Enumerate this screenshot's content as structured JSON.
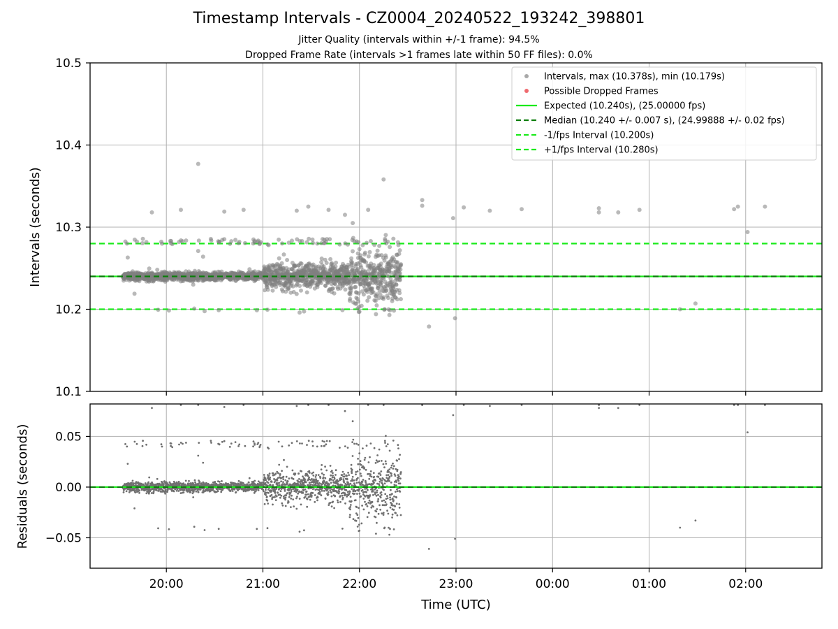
{
  "page": {
    "title": "Timestamp Intervals - CZ0004_20240522_193242_398801",
    "subtitle_1": "Jitter Quality (intervals within +/-1 frame): 94.5%",
    "subtitle_2": "Dropped Frame Rate (intervals >1 frames late within 50 FF files): 0.0%"
  },
  "colors": {
    "points": "#808080",
    "dropped": "#e8434a",
    "expected": "#1aea1a",
    "median": "#0a7d0a",
    "interval_bounds": "#1aea1a",
    "grid": "#b0b0b0"
  },
  "chart_data": [
    {
      "type": "scatter",
      "ylabel": "Intervals (seconds)",
      "ylim": [
        10.1,
        10.5
      ],
      "yticks": [
        10.1,
        10.2,
        10.3,
        10.4,
        10.5
      ],
      "ytick_labels": [
        "10.1",
        "10.2",
        "10.3",
        "10.4",
        "10.5"
      ],
      "xlim": [
        -0.79,
        6.79
      ],
      "grid": true,
      "legend_position": "top-right",
      "legend": [
        "Intervals, max (10.378s), min (10.179s)",
        "Possible Dropped Frames",
        "Expected (10.240s), (25.00000 fps)",
        "Median (10.240 +/- 0.007 s), (24.99888 +/- 0.02 fps)",
        "-1/fps Interval (10.200s)",
        "+1/fps Interval (10.280s)"
      ],
      "lines": {
        "expected": 10.24,
        "median": 10.24,
        "minus_fps": 10.2,
        "plus_fps": 10.28
      },
      "time_range": [
        -0.45,
        2.43
      ],
      "points_sampled": [
        [
          -0.4,
          10.263
        ],
        [
          -0.33,
          10.219
        ],
        [
          -0.15,
          10.318
        ],
        [
          0.05,
          10.283
        ],
        [
          0.15,
          10.321
        ],
        [
          0.33,
          10.377
        ],
        [
          0.33,
          10.271
        ],
        [
          0.38,
          10.264
        ],
        [
          0.6,
          10.319
        ],
        [
          0.8,
          10.321
        ],
        [
          1.05,
          10.279
        ],
        [
          1.35,
          10.32
        ],
        [
          1.38,
          10.196
        ],
        [
          1.47,
          10.325
        ],
        [
          1.68,
          10.321
        ],
        [
          1.85,
          10.315
        ],
        [
          1.93,
          10.305
        ],
        [
          2.0,
          10.197
        ],
        [
          2.09,
          10.321
        ],
        [
          2.25,
          10.358
        ],
        [
          2.31,
          10.193
        ],
        [
          2.65,
          10.333
        ],
        [
          2.65,
          10.326
        ],
        [
          2.72,
          10.179
        ],
        [
          2.97,
          10.311
        ],
        [
          2.99,
          10.189
        ],
        [
          3.08,
          10.324
        ],
        [
          3.35,
          10.32
        ],
        [
          3.68,
          10.322
        ],
        [
          4.48,
          10.323
        ],
        [
          4.48,
          10.318
        ],
        [
          4.68,
          10.318
        ],
        [
          4.9,
          10.321
        ],
        [
          5.32,
          10.2
        ],
        [
          5.48,
          10.207
        ],
        [
          5.88,
          10.322
        ],
        [
          5.92,
          10.325
        ],
        [
          6.02,
          10.294
        ],
        [
          6.2,
          10.325
        ]
      ]
    },
    {
      "type": "scatter",
      "xlabel": "Time (UTC)",
      "ylabel": "Residuals (seconds)",
      "ylim": [
        -0.08,
        0.082
      ],
      "yticks": [
        -0.05,
        0.0,
        0.05
      ],
      "ytick_labels": [
        "−0.05",
        "0.00",
        "0.05"
      ],
      "xticks": [
        0,
        1,
        2,
        3,
        4,
        5,
        6
      ],
      "xtick_labels": [
        "20:00",
        "21:00",
        "22:00",
        "23:00",
        "00:00",
        "01:00",
        "02:00"
      ],
      "grid": true,
      "lines": {
        "expected": 0.0,
        "median": 0.0
      }
    }
  ]
}
